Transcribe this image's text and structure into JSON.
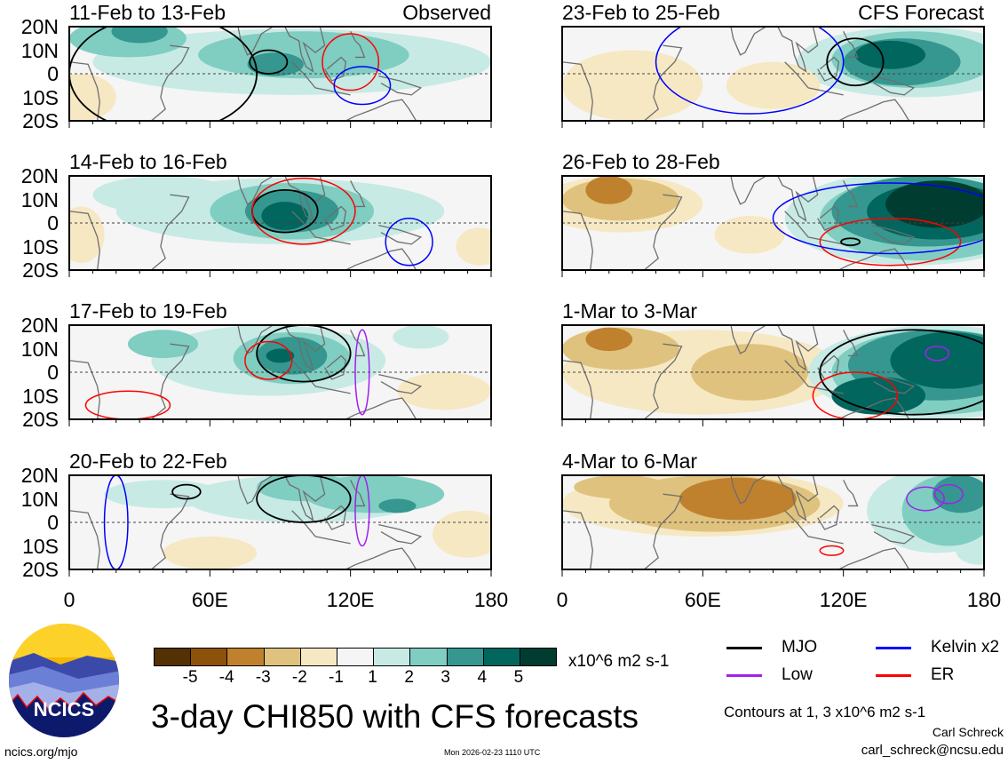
{
  "title": "3-day CHI850 with CFS forecasts",
  "units": "x10^6 m2 s-1",
  "contour_note": "Contours at 1, 3 x10^6 m2 s-1",
  "author": "Carl Schreck",
  "email": "carl_schreck@ncsu.edu",
  "site": "ncics.org/mjo",
  "timestamp": "Mon 2026-02-23 1110 UTC",
  "logo_text": "NCICS",
  "lat_labels": [
    "20N",
    "10N",
    "0",
    "10S",
    "20S"
  ],
  "lon_labels": [
    "0",
    "60E",
    "120E",
    "180"
  ],
  "colorbar": {
    "labels": [
      "-5",
      "-4",
      "-3",
      "-2",
      "-1",
      "1",
      "2",
      "3",
      "4",
      "5"
    ],
    "colors": [
      "#543005",
      "#8c510a",
      "#bf812d",
      "#dfc27d",
      "#f6e8c3",
      "#f5f5f5",
      "#c7eae5",
      "#80cdc1",
      "#35978f",
      "#01665e",
      "#003c30"
    ]
  },
  "legend": [
    {
      "label": "MJO",
      "color": "#000000"
    },
    {
      "label": "Kelvin x2",
      "color": "#0000ff"
    },
    {
      "label": "Low",
      "color": "#a020f0"
    },
    {
      "label": "ER",
      "color": "#ff0000"
    }
  ],
  "chart_data": {
    "type": "heatmap",
    "variable": "CHI850 anomaly",
    "xrange": [
      0,
      180
    ],
    "yrange": [
      -20,
      20
    ],
    "panels": [
      {
        "title": "11-Feb to 13-Feb",
        "label": "Observed",
        "blobs": [
          [
            95,
            5,
            85,
            14,
            1
          ],
          [
            5,
            -10,
            15,
            10,
            -1
          ],
          [
            25,
            15,
            25,
            8,
            2
          ],
          [
            100,
            8,
            45,
            10,
            2
          ],
          [
            30,
            18,
            12,
            5,
            3
          ],
          [
            88,
            4,
            12,
            5,
            3
          ]
        ],
        "contours": [
          [
            "MJO",
            85,
            5,
            8,
            5
          ],
          [
            "ER",
            120,
            5,
            12,
            12
          ],
          [
            "Kelvin",
            125,
            -5,
            12,
            8
          ],
          [
            "MJO",
            40,
            0,
            40,
            25
          ]
        ]
      },
      {
        "title": "14-Feb to 16-Feb",
        "label": "",
        "blobs": [
          [
            90,
            5,
            70,
            14,
            1
          ],
          [
            40,
            12,
            30,
            8,
            1
          ],
          [
            5,
            -5,
            10,
            12,
            -1
          ],
          [
            175,
            -10,
            10,
            8,
            -1
          ],
          [
            95,
            5,
            35,
            12,
            2
          ],
          [
            95,
            5,
            20,
            9,
            3
          ],
          [
            92,
            3,
            10,
            6,
            4
          ]
        ],
        "contours": [
          [
            "MJO",
            92,
            5,
            14,
            9
          ],
          [
            "ER",
            100,
            5,
            22,
            14
          ],
          [
            "Kelvin",
            145,
            -8,
            10,
            10
          ]
        ]
      },
      {
        "title": "17-Feb to 19-Feb",
        "label": "",
        "blobs": [
          [
            85,
            5,
            50,
            15,
            1
          ],
          [
            150,
            15,
            12,
            5,
            1
          ],
          [
            160,
            -8,
            20,
            8,
            -1
          ],
          [
            40,
            12,
            15,
            6,
            2
          ],
          [
            95,
            6,
            25,
            11,
            2
          ],
          [
            95,
            7,
            15,
            8,
            3
          ],
          [
            90,
            7,
            6,
            3,
            4
          ]
        ],
        "contours": [
          [
            "MJO",
            100,
            8,
            20,
            12
          ],
          [
            "ER",
            85,
            5,
            10,
            8
          ],
          [
            "ER",
            25,
            -14,
            18,
            6
          ],
          [
            "Low",
            125,
            0,
            3,
            18
          ]
        ]
      },
      {
        "title": "20-Feb to 22-Feb",
        "label": "",
        "blobs": [
          [
            100,
            10,
            50,
            10,
            1
          ],
          [
            40,
            12,
            25,
            6,
            1
          ],
          [
            60,
            -13,
            20,
            7,
            -1
          ],
          [
            170,
            -5,
            15,
            10,
            -1
          ],
          [
            130,
            12,
            30,
            8,
            2
          ],
          [
            100,
            15,
            20,
            6,
            2
          ],
          [
            140,
            7,
            8,
            3,
            3
          ]
        ],
        "contours": [
          [
            "MJO",
            100,
            10,
            20,
            10
          ],
          [
            "MJO",
            50,
            13,
            6,
            3
          ],
          [
            "Kelvin",
            20,
            0,
            5,
            20
          ],
          [
            "Low",
            125,
            5,
            3,
            15
          ]
        ]
      },
      {
        "title": "23-Feb to 25-Feb",
        "label": "CFS Forecast",
        "blobs": [
          [
            150,
            5,
            50,
            15,
            1
          ],
          [
            30,
            -5,
            30,
            15,
            -1
          ],
          [
            90,
            -5,
            20,
            10,
            -1
          ],
          [
            150,
            6,
            35,
            12,
            2
          ],
          [
            145,
            5,
            25,
            10,
            3
          ],
          [
            140,
            8,
            15,
            6,
            4
          ]
        ],
        "contours": [
          [
            "MJO",
            125,
            5,
            12,
            10
          ],
          [
            "Kelvin",
            80,
            5,
            40,
            22
          ]
        ]
      },
      {
        "title": "26-Feb to 28-Feb",
        "label": "",
        "blobs": [
          [
            150,
            2,
            55,
            20,
            1
          ],
          [
            25,
            8,
            35,
            12,
            -1
          ],
          [
            80,
            -5,
            15,
            8,
            -1
          ],
          [
            25,
            10,
            25,
            9,
            -2
          ],
          [
            20,
            14,
            10,
            6,
            -3
          ],
          [
            155,
            2,
            45,
            18,
            2
          ],
          [
            155,
            5,
            40,
            15,
            3
          ],
          [
            160,
            5,
            30,
            12,
            4
          ],
          [
            160,
            8,
            22,
            10,
            5
          ]
        ],
        "contours": [
          [
            "ER",
            140,
            -8,
            30,
            10
          ],
          [
            "Kelvin",
            140,
            2,
            50,
            15
          ],
          [
            "MJO",
            123,
            -8,
            4,
            1.5
          ]
        ]
      },
      {
        "title": "1-Mar to 3-Mar",
        "label": "",
        "blobs": [
          [
            60,
            0,
            60,
            18,
            -1
          ],
          [
            160,
            0,
            55,
            20,
            1
          ],
          [
            80,
            0,
            25,
            12,
            -2
          ],
          [
            25,
            10,
            25,
            9,
            -2
          ],
          [
            20,
            14,
            10,
            5,
            -3
          ],
          [
            160,
            0,
            45,
            18,
            2
          ],
          [
            160,
            3,
            38,
            15,
            3
          ],
          [
            165,
            5,
            25,
            12,
            4
          ],
          [
            135,
            -10,
            20,
            8,
            4
          ]
        ],
        "contours": [
          [
            "MJO",
            150,
            0,
            40,
            18
          ],
          [
            "ER",
            125,
            -10,
            18,
            10
          ],
          [
            "Low",
            160,
            8,
            5,
            3
          ]
        ]
      },
      {
        "title": "4-Mar to 6-Mar",
        "label": "",
        "blobs": [
          [
            60,
            8,
            60,
            14,
            -1
          ],
          [
            160,
            5,
            30,
            18,
            1
          ],
          [
            178,
            -12,
            10,
            6,
            1
          ],
          [
            65,
            8,
            45,
            12,
            -2
          ],
          [
            25,
            15,
            20,
            5,
            -2
          ],
          [
            75,
            10,
            25,
            9,
            -3
          ],
          [
            165,
            5,
            20,
            15,
            2
          ],
          [
            170,
            12,
            12,
            8,
            3
          ]
        ],
        "contours": [
          [
            "Low",
            155,
            10,
            8,
            5
          ],
          [
            "Low",
            165,
            12,
            6,
            4
          ],
          [
            "ER",
            115,
            -12,
            5,
            2
          ]
        ]
      }
    ]
  }
}
